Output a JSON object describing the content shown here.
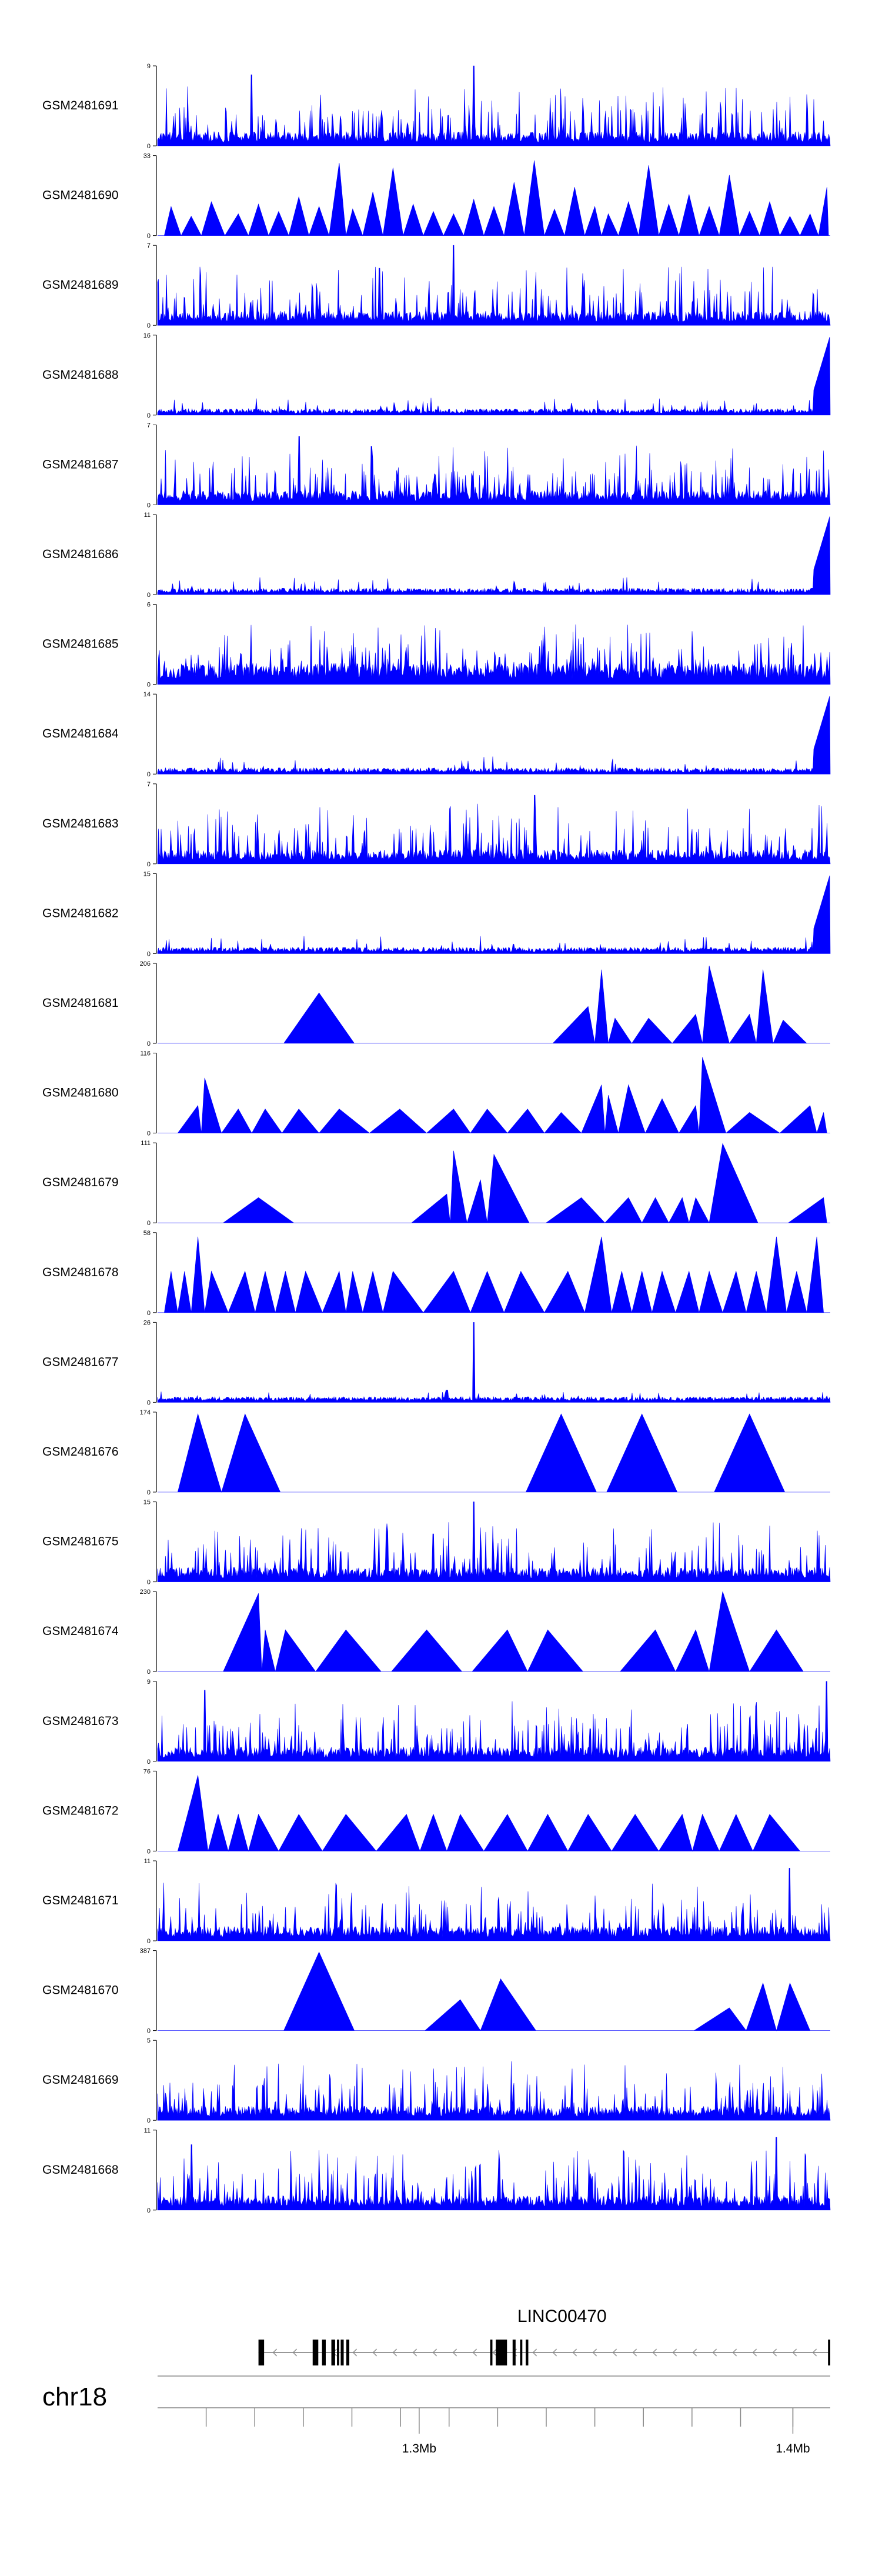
{
  "chart_data": {
    "type": "area",
    "x_unit": "bp",
    "xlim": [
      1230000,
      1410000
    ],
    "series_color": "#0000ff",
    "tracks": [
      {
        "name": "GSM2481691",
        "ymax": "9",
        "ymin": "0",
        "pattern": "spiky",
        "seed": 91,
        "max": 9,
        "spikes": [
          [
            0.47,
            9
          ],
          [
            0.14,
            8
          ]
        ]
      },
      {
        "name": "GSM2481690",
        "ymax": "33",
        "ymin": "0",
        "pattern": "sparse",
        "seed": 90,
        "max": 33,
        "peaks": [
          [
            0.02,
            12
          ],
          [
            0.05,
            8
          ],
          [
            0.08,
            14
          ],
          [
            0.12,
            9
          ],
          [
            0.15,
            13
          ],
          [
            0.18,
            10
          ],
          [
            0.21,
            16
          ],
          [
            0.24,
            12
          ],
          [
            0.27,
            30
          ],
          [
            0.29,
            11
          ],
          [
            0.32,
            18
          ],
          [
            0.35,
            28
          ],
          [
            0.38,
            13
          ],
          [
            0.41,
            10
          ],
          [
            0.44,
            9
          ],
          [
            0.47,
            15
          ],
          [
            0.5,
            12
          ],
          [
            0.53,
            22
          ],
          [
            0.56,
            31
          ],
          [
            0.59,
            11
          ],
          [
            0.62,
            20
          ],
          [
            0.65,
            12
          ],
          [
            0.67,
            9
          ],
          [
            0.7,
            14
          ],
          [
            0.73,
            29
          ],
          [
            0.76,
            13
          ],
          [
            0.79,
            17
          ],
          [
            0.82,
            12
          ],
          [
            0.85,
            25
          ],
          [
            0.88,
            10
          ],
          [
            0.91,
            14
          ],
          [
            0.94,
            8
          ],
          [
            0.97,
            9
          ],
          [
            0.995,
            20
          ]
        ]
      },
      {
        "name": "GSM2481689",
        "ymax": "7",
        "ymin": "0",
        "pattern": "spiky",
        "seed": 89,
        "max": 7,
        "spikes": [
          [
            0.44,
            7
          ],
          [
            0.33,
            5
          ]
        ]
      },
      {
        "name": "GSM2481688",
        "ymax": "16",
        "ymin": "0",
        "pattern": "lowramp",
        "seed": 88,
        "max": 16
      },
      {
        "name": "GSM2481687",
        "ymax": "7",
        "ymin": "0",
        "pattern": "spiky",
        "seed": 87,
        "max": 7,
        "spikes": [
          [
            0.21,
            6
          ]
        ]
      },
      {
        "name": "GSM2481686",
        "ymax": "11",
        "ymin": "0",
        "pattern": "lowramp",
        "seed": 86,
        "max": 11
      },
      {
        "name": "GSM2481685",
        "ymax": "6",
        "ymin": "0",
        "pattern": "spiky",
        "seed": 85,
        "max": 6,
        "dense": true
      },
      {
        "name": "GSM2481684",
        "ymax": "14",
        "ymin": "0",
        "pattern": "lowramp",
        "seed": 84,
        "max": 14
      },
      {
        "name": "GSM2481683",
        "ymax": "7",
        "ymin": "0",
        "pattern": "spiky",
        "seed": 83,
        "max": 7,
        "spikes": [
          [
            0.56,
            6
          ]
        ]
      },
      {
        "name": "GSM2481682",
        "ymax": "15",
        "ymin": "0",
        "pattern": "lowramp",
        "seed": 82,
        "max": 15
      },
      {
        "name": "GSM2481681",
        "ymax": "206",
        "ymin": "0",
        "pattern": "sparse",
        "seed": 81,
        "max": 206,
        "peaks": [
          [
            0.24,
            130
          ],
          [
            0.64,
            95
          ],
          [
            0.66,
            190
          ],
          [
            0.68,
            65
          ],
          [
            0.73,
            65
          ],
          [
            0.8,
            75
          ],
          [
            0.82,
            200
          ],
          [
            0.88,
            75
          ],
          [
            0.9,
            190
          ],
          [
            0.93,
            60
          ]
        ]
      },
      {
        "name": "GSM2481680",
        "ymax": "116",
        "ymin": "0",
        "pattern": "sparse",
        "seed": 80,
        "max": 116,
        "peaks": [
          [
            0.06,
            40
          ],
          [
            0.07,
            80
          ],
          [
            0.12,
            35
          ],
          [
            0.16,
            35
          ],
          [
            0.21,
            35
          ],
          [
            0.27,
            35
          ],
          [
            0.36,
            35
          ],
          [
            0.44,
            35
          ],
          [
            0.49,
            35
          ],
          [
            0.55,
            35
          ],
          [
            0.6,
            30
          ],
          [
            0.66,
            70
          ],
          [
            0.67,
            55
          ],
          [
            0.7,
            70
          ],
          [
            0.75,
            50
          ],
          [
            0.8,
            40
          ],
          [
            0.81,
            110
          ],
          [
            0.88,
            30
          ],
          [
            0.97,
            40
          ],
          [
            0.99,
            30
          ]
        ]
      },
      {
        "name": "GSM2481679",
        "ymax": "111",
        "ymin": "0",
        "pattern": "sparse",
        "seed": 79,
        "max": 111,
        "peaks": [
          [
            0.15,
            35
          ],
          [
            0.43,
            40
          ],
          [
            0.44,
            100
          ],
          [
            0.48,
            60
          ],
          [
            0.5,
            95
          ],
          [
            0.63,
            35
          ],
          [
            0.7,
            35
          ],
          [
            0.74,
            35
          ],
          [
            0.78,
            35
          ],
          [
            0.8,
            35
          ],
          [
            0.84,
            110
          ],
          [
            0.99,
            35
          ]
        ]
      },
      {
        "name": "GSM2481678",
        "ymax": "58",
        "ymin": "0",
        "pattern": "sparse",
        "seed": 78,
        "max": 58,
        "peaks": [
          [
            0.02,
            30
          ],
          [
            0.04,
            30
          ],
          [
            0.06,
            55
          ],
          [
            0.08,
            30
          ],
          [
            0.13,
            30
          ],
          [
            0.16,
            30
          ],
          [
            0.19,
            30
          ],
          [
            0.22,
            30
          ],
          [
            0.27,
            30
          ],
          [
            0.29,
            30
          ],
          [
            0.32,
            30
          ],
          [
            0.35,
            30
          ],
          [
            0.44,
            30
          ],
          [
            0.49,
            30
          ],
          [
            0.54,
            30
          ],
          [
            0.61,
            30
          ],
          [
            0.66,
            55
          ],
          [
            0.69,
            30
          ],
          [
            0.72,
            30
          ],
          [
            0.75,
            30
          ],
          [
            0.79,
            30
          ],
          [
            0.82,
            30
          ],
          [
            0.86,
            30
          ],
          [
            0.89,
            30
          ],
          [
            0.92,
            55
          ],
          [
            0.95,
            30
          ],
          [
            0.98,
            55
          ]
        ]
      },
      {
        "name": "GSM2481677",
        "ymax": "26",
        "ymin": "0",
        "pattern": "low",
        "seed": 77,
        "max": 26,
        "spikes": [
          [
            0.47,
            26
          ],
          [
            0.43,
            4
          ]
        ]
      },
      {
        "name": "GSM2481676",
        "ymax": "174",
        "ymin": "0",
        "pattern": "sparse",
        "seed": 76,
        "max": 174,
        "peaks": [
          [
            0.06,
            170
          ],
          [
            0.13,
            170
          ],
          [
            0.6,
            170
          ],
          [
            0.72,
            170
          ],
          [
            0.88,
            170
          ]
        ]
      },
      {
        "name": "GSM2481675",
        "ymax": "15",
        "ymin": "0",
        "pattern": "spiky",
        "seed": 75,
        "max": 15,
        "spikes": [
          [
            0.47,
            15
          ],
          [
            0.41,
            9
          ]
        ]
      },
      {
        "name": "GSM2481674",
        "ymax": "230",
        "ymin": "0",
        "pattern": "sparse",
        "seed": 74,
        "max": 230,
        "peaks": [
          [
            0.15,
            225
          ],
          [
            0.16,
            120
          ],
          [
            0.19,
            120
          ],
          [
            0.28,
            120
          ],
          [
            0.4,
            120
          ],
          [
            0.52,
            120
          ],
          [
            0.58,
            120
          ],
          [
            0.74,
            120
          ],
          [
            0.8,
            120
          ],
          [
            0.84,
            230
          ],
          [
            0.92,
            120
          ]
        ]
      },
      {
        "name": "GSM2481673",
        "ymax": "9",
        "ymin": "0",
        "pattern": "spiky",
        "seed": 73,
        "max": 9,
        "spikes": [
          [
            0.995,
            9
          ],
          [
            0.07,
            8
          ]
        ]
      },
      {
        "name": "GSM2481672",
        "ymax": "76",
        "ymin": "0",
        "pattern": "sparse",
        "seed": 72,
        "max": 76,
        "peaks": [
          [
            0.06,
            72
          ],
          [
            0.09,
            35
          ],
          [
            0.12,
            35
          ],
          [
            0.15,
            35
          ],
          [
            0.21,
            35
          ],
          [
            0.28,
            35
          ],
          [
            0.37,
            35
          ],
          [
            0.41,
            35
          ],
          [
            0.45,
            35
          ],
          [
            0.52,
            35
          ],
          [
            0.58,
            35
          ],
          [
            0.64,
            35
          ],
          [
            0.71,
            35
          ],
          [
            0.78,
            35
          ],
          [
            0.81,
            35
          ],
          [
            0.86,
            35
          ],
          [
            0.91,
            35
          ]
        ]
      },
      {
        "name": "GSM2481671",
        "ymax": "11",
        "ymin": "0",
        "pattern": "spiky",
        "seed": 71,
        "max": 11,
        "spikes": [
          [
            0.94,
            10
          ]
        ]
      },
      {
        "name": "GSM2481670",
        "ymax": "387",
        "ymin": "0",
        "pattern": "sparse",
        "seed": 70,
        "max": 387,
        "peaks": [
          [
            0.24,
            380
          ],
          [
            0.45,
            150
          ],
          [
            0.51,
            250
          ],
          [
            0.85,
            110
          ],
          [
            0.9,
            230
          ],
          [
            0.94,
            230
          ]
        ]
      },
      {
        "name": "GSM2481669",
        "ymax": "5",
        "ymin": "0",
        "pattern": "spiky",
        "seed": 69,
        "max": 5
      },
      {
        "name": "GSM2481668",
        "ymax": "11",
        "ymin": "0",
        "pattern": "spiky",
        "seed": 68,
        "max": 11,
        "spikes": [
          [
            0.05,
            9
          ],
          [
            0.92,
            10
          ]
        ]
      }
    ],
    "gene": {
      "name": "LINC00470",
      "strand": "-",
      "start": 1257000,
      "end": 1410000,
      "exons": [
        [
          1257000,
          1258500
        ],
        [
          1271500,
          1273000
        ],
        [
          1274000,
          1275000
        ],
        [
          1276500,
          1277500
        ],
        [
          1278000,
          1278600
        ],
        [
          1279000,
          1279800
        ],
        [
          1280500,
          1281300
        ],
        [
          1319000,
          1319600
        ],
        [
          1320500,
          1323500
        ],
        [
          1325000,
          1325800
        ],
        [
          1327000,
          1327600
        ],
        [
          1328500,
          1329200
        ],
        [
          1409400,
          1410000
        ]
      ]
    },
    "axis": {
      "chromosome": "chr18",
      "ticks": [
        1243000,
        1256000,
        1269000,
        1282000,
        1295000,
        1308000,
        1321000,
        1334000,
        1347000,
        1360000,
        1373000,
        1386000,
        1400000
      ],
      "labeled_ticks": [
        {
          "value": 1300000,
          "label": "1.3Mb"
        },
        {
          "value": 1400000,
          "label": "1.4Mb"
        }
      ]
    }
  }
}
